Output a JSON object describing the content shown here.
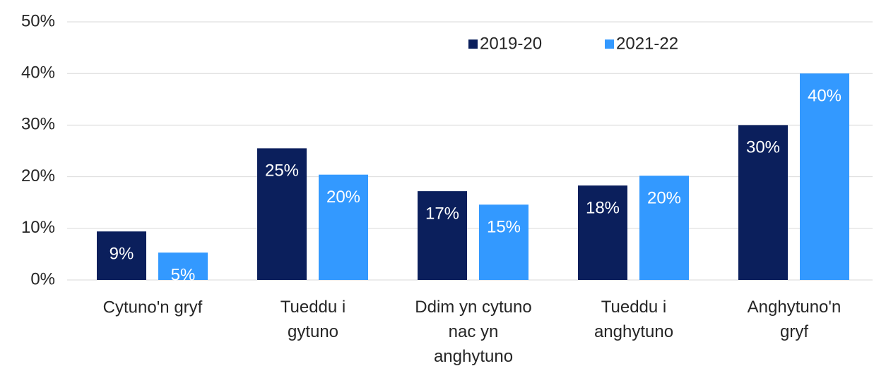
{
  "chart_data": {
    "type": "bar",
    "categories": [
      "Cytuno'n gryf",
      "Tueddu i\ngytuno",
      "Ddim yn cytuno\nnac yn\nanghytuno",
      "Tueddu i\nanghytuno",
      "Anghytuno'n\ngryf"
    ],
    "series": [
      {
        "name": "2019-20",
        "color": "#0b1f5c",
        "values": [
          9.4,
          25.5,
          17.2,
          18.3,
          30.0
        ],
        "value_labels": [
          "9%",
          "25%",
          "17%",
          "18%",
          "30%"
        ]
      },
      {
        "name": "2021-22",
        "color": "#3399ff",
        "values": [
          5.3,
          20.4,
          14.6,
          20.2,
          40.0
        ],
        "value_labels": [
          "5%",
          "20%",
          "15%",
          "20%",
          "40%"
        ]
      }
    ],
    "ylim": [
      0,
      50
    ],
    "yticks": [
      {
        "value": 0,
        "label": "0%"
      },
      {
        "value": 10,
        "label": "10%"
      },
      {
        "value": 20,
        "label": "20%"
      },
      {
        "value": 30,
        "label": "30%"
      },
      {
        "value": 40,
        "label": "40%"
      },
      {
        "value": 50,
        "label": "50%"
      }
    ],
    "grid": true,
    "legend": "top"
  }
}
